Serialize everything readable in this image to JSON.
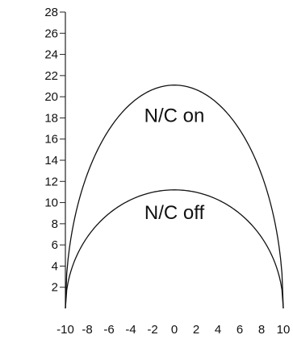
{
  "chart_data": {
    "type": "line",
    "title": "",
    "xlabel": "",
    "ylabel": "",
    "xlim": [
      -10,
      10
    ],
    "ylim": [
      0,
      28
    ],
    "x_ticks": [
      "-10",
      "-8",
      "-6",
      "-4",
      "-2",
      "0",
      "2",
      "4",
      "6",
      "8",
      "10"
    ],
    "y_ticks": [
      "2",
      "4",
      "6",
      "8",
      "10",
      "12",
      "14",
      "16",
      "18",
      "20",
      "22",
      "24",
      "26",
      "28"
    ],
    "grid": false,
    "legend": "none",
    "series": [
      {
        "label": "N/C on",
        "shape": "semi-elliptical",
        "x": [
          -10,
          -8,
          -6,
          -4,
          -2,
          0,
          2,
          4,
          6,
          8,
          10
        ],
        "y": [
          0,
          12.6,
          16.8,
          19.2,
          20.6,
          21.1,
          20.6,
          19.2,
          16.8,
          12.6,
          0
        ],
        "color": "#111111"
      },
      {
        "label": "N/C off",
        "shape": "semi-elliptical",
        "x": [
          -10,
          -8,
          -6,
          -4,
          -2,
          0,
          2,
          4,
          6,
          8,
          10
        ],
        "y": [
          0,
          6.7,
          8.9,
          10.2,
          10.9,
          11.2,
          10.9,
          10.2,
          8.9,
          6.7,
          0
        ],
        "color": "#111111"
      }
    ]
  }
}
